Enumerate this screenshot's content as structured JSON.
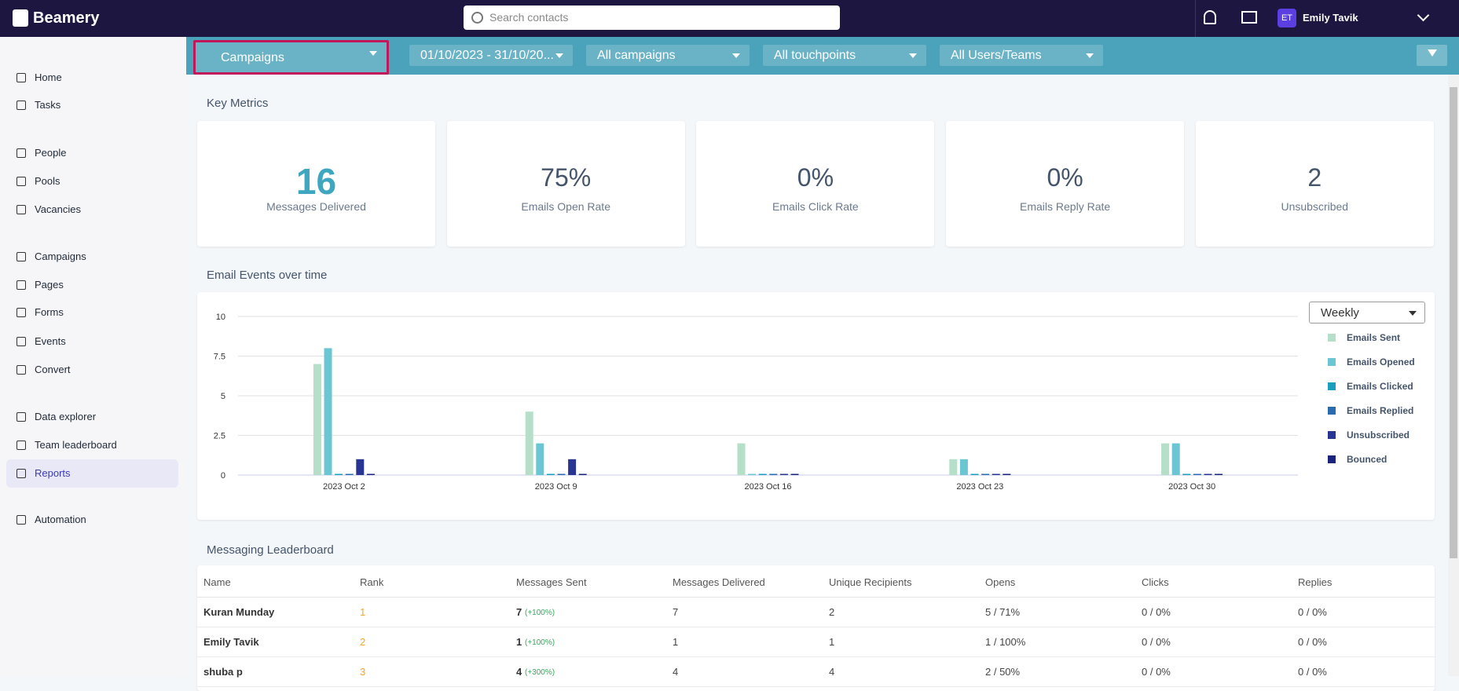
{
  "header": {
    "brand": "Beamery",
    "search_placeholder": "Search contacts",
    "avatar": "ET",
    "user": "Emily Tavik"
  },
  "sidebar": {
    "items": [
      "Home",
      "Tasks",
      "People",
      "Pools",
      "Vacancies",
      "Campaigns",
      "Pages",
      "Forms",
      "Events",
      "Convert",
      "Data explorer",
      "Team leaderboard",
      "Reports",
      "Automation"
    ],
    "active": "Reports"
  },
  "filters": [
    "Campaigns",
    "01/10/2023 - 31/10/20...",
    "All campaigns",
    "All touchpoints",
    "All Users/Teams"
  ],
  "key_metrics": {
    "title": "Key Metrics",
    "cards": [
      {
        "value": "16",
        "label": "Messages Delivered"
      },
      {
        "value": "75%",
        "label": "Emails Open Rate"
      },
      {
        "value": "0%",
        "label": "Emails Click Rate"
      },
      {
        "value": "0%",
        "label": "Emails Reply Rate"
      },
      {
        "value": "2",
        "label": "Unsubscribed"
      }
    ]
  },
  "chart_data": {
    "type": "bar",
    "title": "Email Events over time",
    "period": "Weekly",
    "categories": [
      "2023 Oct 2",
      "2023 Oct 9",
      "2023 Oct 16",
      "2023 Oct 23",
      "2023 Oct 30"
    ],
    "ylim": [
      0,
      10
    ],
    "yticks": [
      0,
      2.5,
      5,
      7.5,
      10
    ],
    "grid": true,
    "series": [
      {
        "name": "Emails Sent",
        "color": "#b5dfc9",
        "values": [
          7,
          4,
          2,
          1,
          2
        ]
      },
      {
        "name": "Emails Opened",
        "color": "#6cc5d3",
        "values": [
          8,
          2,
          0,
          1,
          2
        ]
      },
      {
        "name": "Emails Clicked",
        "color": "#1a9fc1",
        "values": [
          0,
          0,
          0,
          0,
          0
        ]
      },
      {
        "name": "Emails Replied",
        "color": "#2b6cb0",
        "values": [
          0,
          0,
          0,
          0,
          0
        ]
      },
      {
        "name": "Unsubscribed",
        "color": "#283593",
        "values": [
          1,
          1,
          0,
          0,
          0
        ]
      },
      {
        "name": "Bounced",
        "color": "#1a237e",
        "values": [
          0,
          0,
          0,
          0,
          0
        ]
      }
    ]
  },
  "leaderboard": {
    "title": "Messaging Leaderboard",
    "columns": [
      "Name",
      "Rank",
      "Messages Sent",
      "Messages Delivered",
      "Unique Recipients",
      "Opens",
      "Clicks",
      "Replies"
    ],
    "rows": [
      [
        "Kuran Munday",
        "1",
        {
          "value": "7",
          "change": "(+100%)"
        },
        "7",
        "2",
        "5 / 71%",
        "0 / 0%",
        "0 / 0%"
      ],
      [
        "Emily Tavik",
        "2",
        {
          "value": "1",
          "change": "(+100%)"
        },
        "1",
        "1",
        "1 / 100%",
        "0 / 0%",
        "0 / 0%"
      ],
      [
        "shuba p",
        "3",
        {
          "value": "4",
          "change": "(+300%)"
        },
        "4",
        "4",
        "2 / 50%",
        "0 / 0%",
        "0 / 0%"
      ]
    ]
  }
}
